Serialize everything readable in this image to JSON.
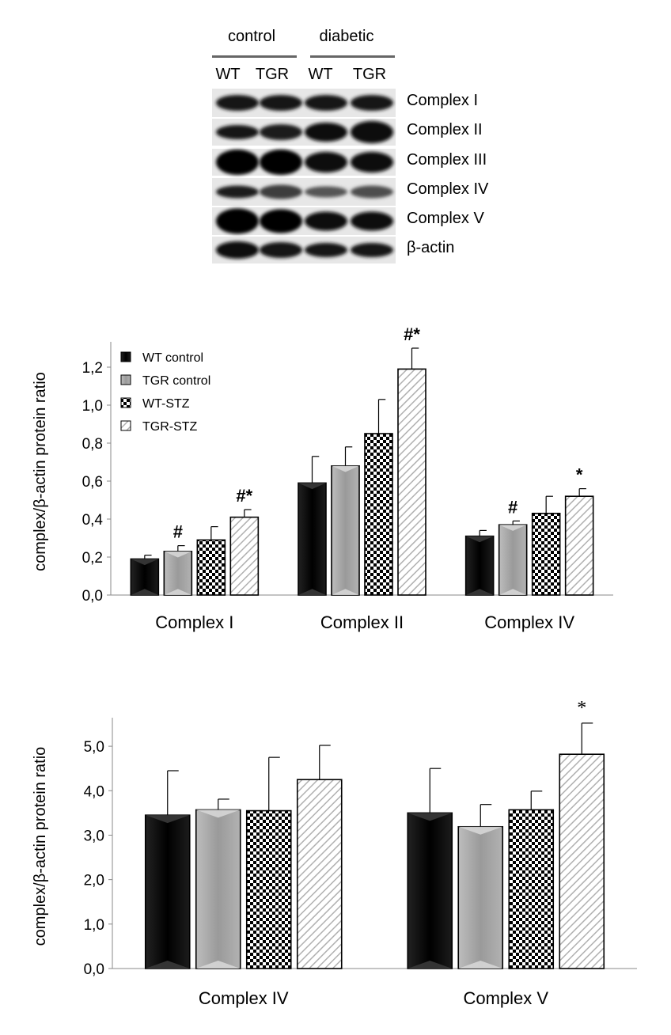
{
  "blot": {
    "groups": [
      "control",
      "diabetic"
    ],
    "lanes": [
      "WT",
      "TGR",
      "WT",
      "TGR"
    ],
    "bands": [
      "Complex I",
      "Complex II",
      "Complex III",
      "Complex IV",
      "Complex V",
      "β-actin"
    ]
  },
  "legend": [
    "WT control",
    "TGR control",
    "WT-STZ",
    "TGR-STZ"
  ],
  "chart_data": [
    {
      "type": "bar",
      "ylabel": "complex/β-actin protein ratio",
      "ylim": [
        0,
        1.3
      ],
      "yticks": [
        "0,0",
        "0,2",
        "0,4",
        "0,6",
        "0,8",
        "1,0",
        "1,2"
      ],
      "categories": [
        "Complex I",
        "Complex II",
        "Complex IV"
      ],
      "series": [
        {
          "name": "WT control",
          "values": [
            0.19,
            0.59,
            0.31
          ],
          "errors": [
            0.02,
            0.14,
            0.03
          ]
        },
        {
          "name": "TGR control",
          "values": [
            0.23,
            0.68,
            0.37
          ],
          "errors": [
            0.03,
            0.1,
            0.02
          ]
        },
        {
          "name": "WT-STZ",
          "values": [
            0.29,
            0.85,
            0.43
          ],
          "errors": [
            0.07,
            0.18,
            0.09
          ]
        },
        {
          "name": "TGR-STZ",
          "values": [
            0.41,
            1.19,
            0.52
          ],
          "errors": [
            0.04,
            0.11,
            0.04
          ]
        }
      ],
      "annotations": [
        {
          "category": "Complex I",
          "series": "TGR control",
          "text": "#"
        },
        {
          "category": "Complex I",
          "series": "TGR-STZ",
          "text": "#*"
        },
        {
          "category": "Complex II",
          "series": "TGR-STZ",
          "text": "#*"
        },
        {
          "category": "Complex IV",
          "series": "TGR control",
          "text": "#"
        },
        {
          "category": "Complex IV",
          "series": "TGR-STZ",
          "text": "*"
        }
      ],
      "legend_position": "top-left"
    },
    {
      "type": "bar",
      "ylabel": "complex/β-actin protein ratio",
      "ylim": [
        0,
        5.5
      ],
      "yticks": [
        "0,0",
        "1,0",
        "2,0",
        "3,0",
        "4,0",
        "5,0"
      ],
      "categories": [
        "Complex IV",
        "Complex V"
      ],
      "series": [
        {
          "name": "WT control",
          "values": [
            3.45,
            3.5
          ],
          "errors": [
            1.0,
            1.0
          ]
        },
        {
          "name": "TGR control",
          "values": [
            3.57,
            3.19
          ],
          "errors": [
            0.24,
            0.5
          ]
        },
        {
          "name": "WT-STZ",
          "values": [
            3.55,
            3.57
          ],
          "errors": [
            1.2,
            0.42
          ]
        },
        {
          "name": "TGR-STZ",
          "values": [
            4.25,
            4.82
          ],
          "errors": [
            0.77,
            0.7
          ]
        }
      ],
      "annotations": [
        {
          "category": "Complex V",
          "series": "TGR-STZ",
          "text": "*"
        }
      ]
    }
  ]
}
